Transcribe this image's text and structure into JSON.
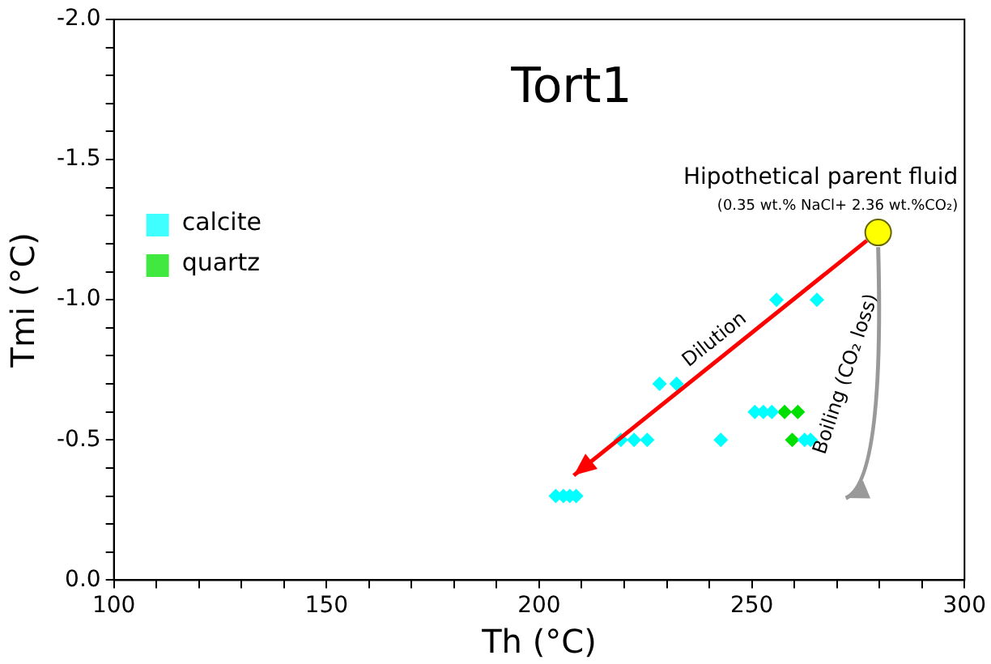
{
  "chart_data": {
    "type": "scatter",
    "title": "Tort1",
    "xlabel": "Th (°C)",
    "ylabel": "Tmi (°C)",
    "xlim": [
      100,
      300
    ],
    "xticks": [
      100,
      {
        "value": 110,
        "label": null
      },
      {
        "value": 120,
        "label": null
      },
      {
        "value": 130,
        "label": null
      },
      {
        "value": 140,
        "label": null
      },
      150,
      {
        "value": 160,
        "label": null
      },
      {
        "value": 170,
        "label": null
      },
      {
        "value": 180,
        "label": null
      },
      {
        "value": 190,
        "label": null
      },
      200,
      {
        "value": 210,
        "label": null
      },
      {
        "value": 220,
        "label": null
      },
      {
        "value": 230,
        "label": null
      },
      {
        "value": 240,
        "label": null
      },
      250,
      {
        "value": 260,
        "label": null
      },
      {
        "value": 270,
        "label": null
      },
      {
        "value": 280,
        "label": null
      },
      {
        "value": 290,
        "label": null
      },
      300
    ],
    "ylim": [
      0,
      -2
    ],
    "yticks": [
      {
        "value": 0,
        "label": "0.0"
      },
      {
        "value": -0.1,
        "label": null
      },
      {
        "value": -0.2,
        "label": null
      },
      {
        "value": -0.3,
        "label": null
      },
      {
        "value": -0.4,
        "label": null
      },
      {
        "value": -0.5,
        "label": "-0.5"
      },
      {
        "value": -0.6,
        "label": null
      },
      {
        "value": -0.7,
        "label": null
      },
      {
        "value": -0.8,
        "label": null
      },
      {
        "value": -0.9,
        "label": null
      },
      {
        "value": -1,
        "label": "-1.0"
      },
      {
        "value": -1.1,
        "label": null
      },
      {
        "value": -1.2,
        "label": null
      },
      {
        "value": -1.3,
        "label": null
      },
      {
        "value": -1.4,
        "label": null
      },
      {
        "value": -1.5,
        "label": "-1.5"
      },
      {
        "value": -1.6,
        "label": null
      },
      {
        "value": -1.7,
        "label": null
      },
      {
        "value": -1.8,
        "label": null
      },
      {
        "value": -1.9,
        "label": null
      },
      {
        "value": -2,
        "label": "-2.0"
      }
    ],
    "grid": false,
    "legend": "left",
    "marker": "diamond",
    "series": [
      {
        "name": "calcite",
        "color": "#00ffff",
        "x": [
          255.8,
          265.3,
          228.3,
          232.3,
          250.7,
          252.7,
          254.7,
          219.2,
          222.3,
          225.4,
          242.7,
          262.4,
          263.8,
          203.9,
          205.7,
          207.2,
          208.7
        ],
        "values": [
          -1,
          -1,
          -0.7,
          -0.7,
          -0.6,
          -0.6,
          -0.6,
          -0.5,
          -0.5,
          -0.5,
          -0.5,
          -0.5,
          -0.5,
          -0.3,
          -0.3,
          -0.3,
          -0.3
        ]
      },
      {
        "name": "quartz",
        "color": "#00e000",
        "x": [
          257.7,
          260.8,
          259.5
        ],
        "values": [
          -0.6,
          -0.6,
          -0.5
        ]
      },
      {
        "name": "Hipothetical parent fluid",
        "color": "#ffff00",
        "marker": "circle",
        "x": [
          279.7
        ],
        "values": [
          -1.24
        ]
      }
    ],
    "annotations": [
      "(0.35 wt.% NaCl+ 2.36 wt.%CO₂)",
      "Dilution",
      "Boiling (CO₂ loss)"
    ]
  }
}
